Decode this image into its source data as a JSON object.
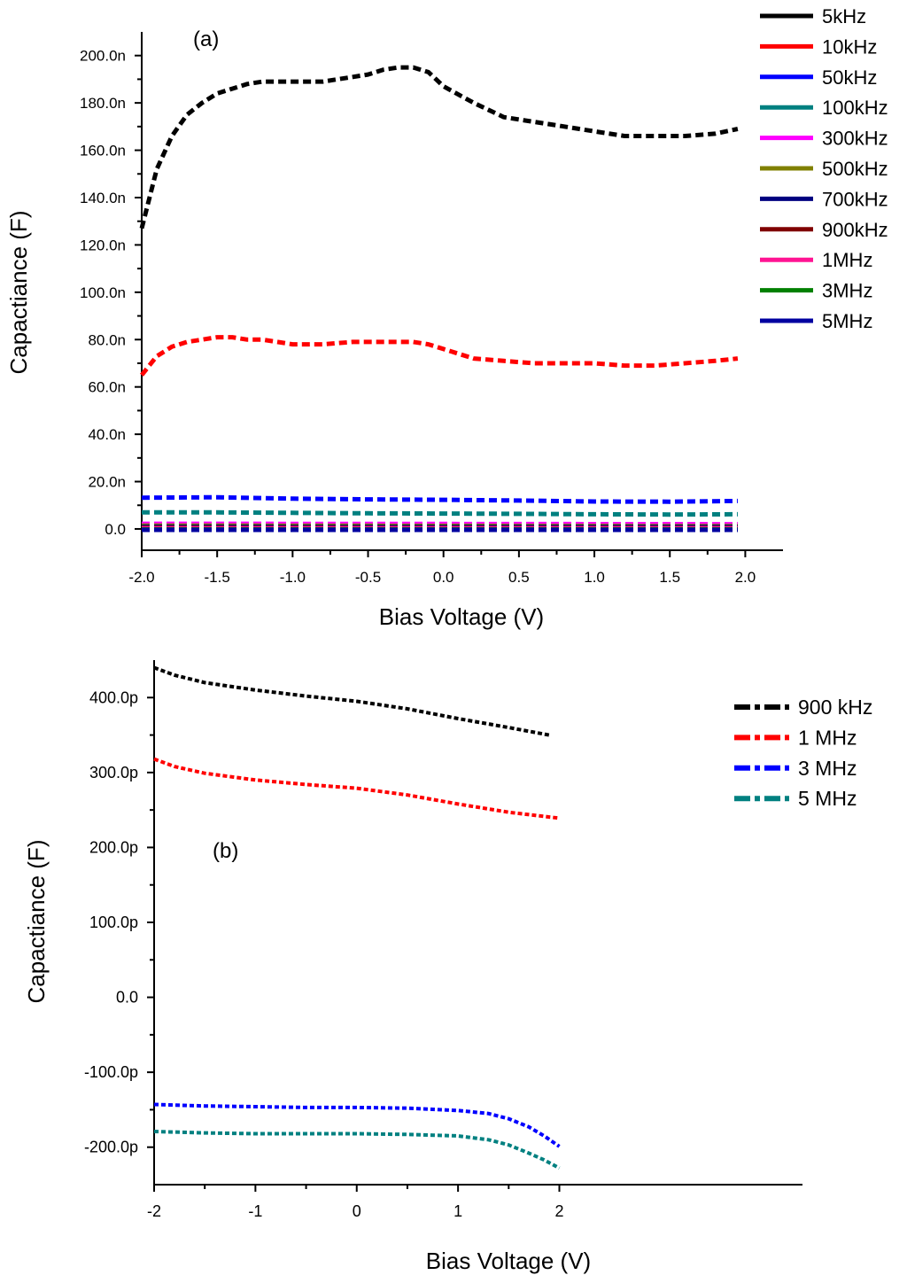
{
  "chart_data": [
    {
      "type": "line",
      "panel_label": "(a)",
      "title": "",
      "xlabel": "Bias Voltage (V)",
      "ylabel": "Capactiance (F)",
      "xlim": [
        -2.0,
        2.25
      ],
      "ylim": [
        -9,
        210
      ],
      "xticks": [
        -2.0,
        -1.5,
        -1.0,
        -0.5,
        0.0,
        0.5,
        1.0,
        1.5,
        2.0
      ],
      "xtick_labels": [
        "-2.0",
        "-1.5",
        "-1.0",
        "-0.5",
        "0.0",
        "0.5",
        "1.0",
        "1.5",
        "2.0"
      ],
      "yticks": [
        0,
        20,
        40,
        60,
        80,
        100,
        120,
        140,
        160,
        180,
        200
      ],
      "ytick_labels": [
        "0.0",
        "20.0n",
        "40.0n",
        "60.0n",
        "80.0n",
        "100.0n",
        "120.0n",
        "140.0n",
        "160.0n",
        "180.0n",
        "200.0n"
      ],
      "y_unit": "nF",
      "grid": false,
      "legend_position": "top-right",
      "series": [
        {
          "name": "5kHz",
          "color": "#000000",
          "x": [
            -2.0,
            -1.9,
            -1.8,
            -1.7,
            -1.6,
            -1.5,
            -1.4,
            -1.3,
            -1.2,
            -1.0,
            -0.8,
            -0.6,
            -0.5,
            -0.4,
            -0.3,
            -0.2,
            -0.1,
            0.0,
            0.2,
            0.4,
            0.6,
            0.8,
            1.0,
            1.2,
            1.4,
            1.6,
            1.8,
            1.95
          ],
          "y": [
            127,
            152,
            166,
            175,
            180,
            184,
            186,
            188,
            189,
            189,
            189,
            191,
            192,
            194,
            195,
            195,
            193,
            187,
            180,
            174,
            172,
            170,
            168,
            166,
            166,
            166,
            167,
            169
          ]
        },
        {
          "name": "10kHz",
          "color": "#ff0000",
          "x": [
            -2.0,
            -1.9,
            -1.8,
            -1.7,
            -1.6,
            -1.5,
            -1.4,
            -1.3,
            -1.2,
            -1.0,
            -0.8,
            -0.6,
            -0.4,
            -0.3,
            -0.2,
            -0.1,
            0.0,
            0.2,
            0.4,
            0.6,
            0.8,
            1.0,
            1.2,
            1.4,
            1.6,
            1.8,
            1.95
          ],
          "y": [
            65,
            73,
            77,
            79,
            80,
            81,
            81,
            80,
            80,
            78,
            78,
            79,
            79,
            79,
            79,
            78,
            76,
            72,
            71,
            70,
            70,
            70,
            69,
            69,
            70,
            71,
            72
          ]
        },
        {
          "name": "50kHz",
          "color": "#0000ff",
          "x": [
            -2.0,
            -1.5,
            -1.0,
            -0.5,
            0.0,
            0.5,
            1.0,
            1.5,
            1.95
          ],
          "y": [
            13.2,
            13.4,
            12.8,
            12.5,
            12.3,
            12.0,
            11.6,
            11.5,
            11.8
          ]
        },
        {
          "name": "100kHz",
          "color": "#008080",
          "x": [
            -2.0,
            -1.5,
            -1.0,
            -0.5,
            0.0,
            0.5,
            1.0,
            1.5,
            1.95
          ],
          "y": [
            7.0,
            7.0,
            6.8,
            6.6,
            6.5,
            6.4,
            6.2,
            6.1,
            6.2
          ]
        },
        {
          "name": "300kHz",
          "color": "#ff00ff",
          "x": [
            -2.0,
            0.0,
            1.95
          ],
          "y": [
            2.2,
            2.1,
            2.0
          ]
        },
        {
          "name": "500kHz",
          "color": "#808000",
          "x": [
            -2.0,
            0.0,
            1.95
          ],
          "y": [
            1.4,
            1.3,
            1.2
          ]
        },
        {
          "name": "700kHz",
          "color": "#000080",
          "x": [
            -2.0,
            0.0,
            1.95
          ],
          "y": [
            0.9,
            0.8,
            0.8
          ]
        },
        {
          "name": "900kHz",
          "color": "#800000",
          "x": [
            -2.0,
            0.0,
            1.95
          ],
          "y": [
            0.5,
            0.4,
            0.4
          ]
        },
        {
          "name": "1MHz",
          "color": "#ff1493",
          "x": [
            -2.0,
            0.0,
            1.95
          ],
          "y": [
            0.3,
            0.3,
            0.3
          ]
        },
        {
          "name": "3MHz",
          "color": "#008000",
          "x": [
            -2.0,
            0.0,
            1.95
          ],
          "y": [
            -0.2,
            -0.2,
            -0.2
          ]
        },
        {
          "name": "5MHz",
          "color": "#0000a0",
          "x": [
            -2.0,
            0.0,
            1.95
          ],
          "y": [
            -0.4,
            -0.4,
            -0.4
          ]
        }
      ]
    },
    {
      "type": "line",
      "panel_label": "(b)",
      "title": "",
      "xlabel": "Bias Voltage (V)",
      "ylabel": "Capactiance (F)",
      "xlim": [
        -2,
        4.4
      ],
      "ylim": [
        -250,
        450
      ],
      "xticks": [
        -2,
        -1,
        0,
        1,
        2
      ],
      "xtick_labels": [
        "-2",
        "-1",
        "0",
        "1",
        "2"
      ],
      "yticks": [
        -200,
        -100,
        0,
        100,
        200,
        300,
        400
      ],
      "ytick_labels": [
        "-200.0p",
        "-100.0p",
        "0.0",
        "100.0p",
        "200.0p",
        "300.0p",
        "400.0p"
      ],
      "y_unit": "pF",
      "grid": false,
      "legend_position": "top-right",
      "series": [
        {
          "name": "900 kHz",
          "color": "#000000",
          "x": [
            -2.0,
            -1.8,
            -1.5,
            -1.0,
            -0.5,
            0.0,
            0.5,
            1.0,
            1.5,
            1.9
          ],
          "y": [
            440,
            430,
            420,
            410,
            402,
            395,
            385,
            372,
            360,
            350
          ]
        },
        {
          "name": "1 MHz",
          "color": "#ff0000",
          "x": [
            -2.0,
            -1.8,
            -1.5,
            -1.0,
            -0.5,
            0.0,
            0.5,
            1.0,
            1.5,
            2.0
          ],
          "y": [
            318,
            308,
            299,
            290,
            284,
            279,
            270,
            258,
            247,
            239
          ]
        },
        {
          "name": "3 MHz",
          "color": "#0000ff",
          "x": [
            -2.0,
            -1.5,
            -1.0,
            -0.5,
            0.0,
            0.5,
            1.0,
            1.3,
            1.5,
            1.7,
            1.85,
            2.0
          ],
          "y": [
            -143,
            -145,
            -146,
            -147,
            -147,
            -148,
            -151,
            -155,
            -162,
            -173,
            -185,
            -199
          ]
        },
        {
          "name": "5 MHz",
          "color": "#008080",
          "x": [
            -2.0,
            -1.5,
            -1.0,
            -0.5,
            0.0,
            0.5,
            1.0,
            1.3,
            1.5,
            1.7,
            1.85,
            2.0
          ],
          "y": [
            -179,
            -181,
            -182,
            -182,
            -182,
            -183,
            -185,
            -190,
            -197,
            -208,
            -217,
            -228
          ]
        }
      ]
    }
  ]
}
